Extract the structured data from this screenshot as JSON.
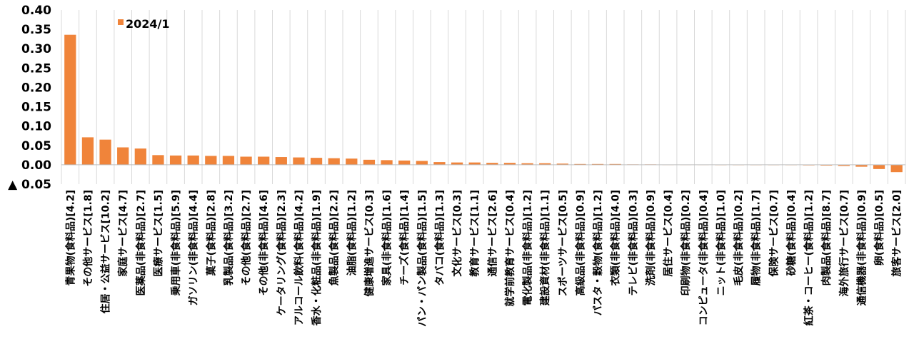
{
  "chart_data": {
    "type": "bar",
    "legend": {
      "label": "2024/1",
      "placement": "top-left"
    },
    "ylim": [
      -0.05,
      0.4
    ],
    "yticks": [
      {
        "value": 0.4,
        "label": "0.40"
      },
      {
        "value": 0.35,
        "label": "0.35"
      },
      {
        "value": 0.3,
        "label": "0.30"
      },
      {
        "value": 0.25,
        "label": "0.25"
      },
      {
        "value": 0.2,
        "label": "0.20"
      },
      {
        "value": 0.15,
        "label": "0.15"
      },
      {
        "value": 0.1,
        "label": "0.10"
      },
      {
        "value": 0.05,
        "label": "0.05"
      },
      {
        "value": 0.0,
        "label": "0.00"
      },
      {
        "value": -0.05,
        "label": "▲ 0.05"
      }
    ],
    "grid": "vertical",
    "bar_color": "#f0843a",
    "categories": [
      "青果物(食料品)[4.2]",
      "その他サービス[1.8]",
      "住居・公益サービス[10.2]",
      "家庭サービス[4.7]",
      "医薬品(非食料品)[2.7]",
      "医療サービス[1.5]",
      "乗用車(非食料品)[5.9]",
      "ガソリン(非食料品)[4.4]",
      "菓子(食料品)[2.8]",
      "乳製品(食料品)[3.2]",
      "その他(食料品)[2.7]",
      "その他(非食料品)[4.6]",
      "ケータリング(食料品)[2.3]",
      "アルコール飲料(食料品)[4.2]",
      "香水・化粧品(非食料品)[1.9]",
      "魚製品(食料品)[2.2]",
      "油脂(食料品)[1.2]",
      "健康増進サービス[0.3]",
      "家具(非食料品)[1.6]",
      "チーズ(食料品)[1.4]",
      "パン・パン製品(食料品)[1.5]",
      "タバコ(食料品)[1.3]",
      "文化サービス[0.3]",
      "教育サービス[1.1]",
      "通信サービス[2.6]",
      "就学前教育サービス[0.4]",
      "電化製品(非食料品)[1.2]",
      "建設資材(非食料品)[1.1]",
      "スポーツサービス[0.5]",
      "高級品(非食料品)[0.9]",
      "パスタ・穀物(食料品)[1.2]",
      "衣類(非食料品)[4.0]",
      "テレビ(非食料品)[0.3]",
      "洗剤(非食料品)[0.9]",
      "居住サービス[0.4]",
      "印刷物(非食料品)[0.2]",
      "コンピュータ(非食料品)[0.4]",
      "ニット(非食料品)[1.0]",
      "毛皮(非食料品)[0.2]",
      "履物(非食料品)[1.7]",
      "保険サービス[0.7]",
      "砂糖(食料品)[0.4]",
      "紅茶・コーヒー(食料品)[1.2]",
      "肉製品(食料品)[8.7]",
      "海外旅行サービス[0.7]",
      "通信機器(非食料品)[0.9]",
      "卵(食料品)[0.5]",
      "旅客サービス[2.0]"
    ],
    "values": [
      0.336,
      0.071,
      0.065,
      0.045,
      0.042,
      0.025,
      0.024,
      0.024,
      0.023,
      0.023,
      0.021,
      0.021,
      0.02,
      0.019,
      0.018,
      0.017,
      0.016,
      0.013,
      0.012,
      0.011,
      0.01,
      0.007,
      0.006,
      0.006,
      0.005,
      0.005,
      0.004,
      0.004,
      0.003,
      0.002,
      0.002,
      0.002,
      0.001,
      0.001,
      0.0005,
      0.0005,
      0.0005,
      0.0,
      0.0,
      0.0,
      -0.0005,
      -0.001,
      -0.0015,
      -0.002,
      -0.003,
      -0.005,
      -0.011,
      -0.019
    ]
  }
}
